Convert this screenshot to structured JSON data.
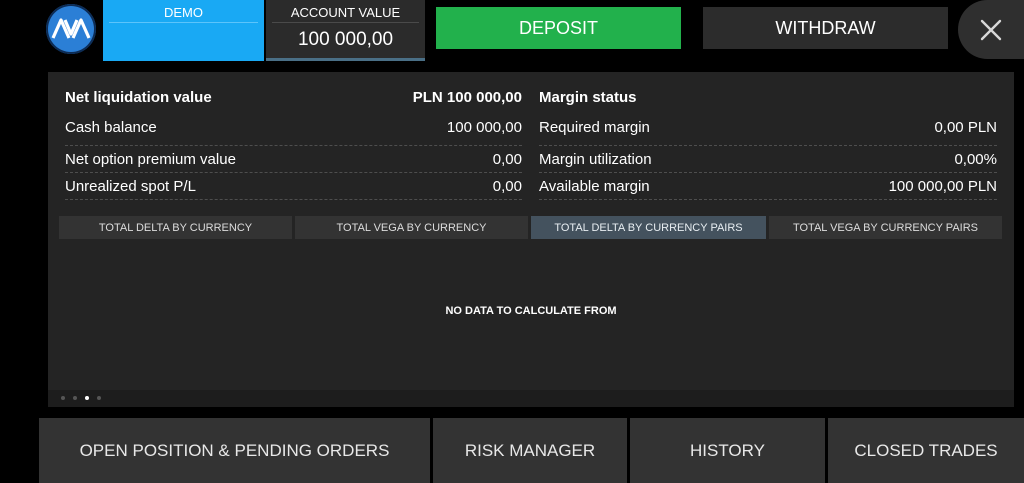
{
  "header": {
    "demo_label": "DEMO",
    "account_value_label": "ACCOUNT VALUE",
    "account_value": "100 000,00",
    "deposit_label": "DEPOSIT",
    "withdraw_label": "WITHDRAW",
    "logo_icon": "ava-logo-icon",
    "close_icon": "close-icon"
  },
  "summary": {
    "left": [
      {
        "label": "Net liquidation value",
        "value": "PLN 100 000,00"
      },
      {
        "label": "Cash balance",
        "value": "100 000,00"
      },
      {
        "label": "Net option premium value",
        "value": "0,00"
      },
      {
        "label": "Unrealized spot P/L",
        "value": "0,00"
      }
    ],
    "right": [
      {
        "label": "Margin status",
        "value": ""
      },
      {
        "label": "Required margin",
        "value": "0,00 PLN"
      },
      {
        "label": "Margin utilization",
        "value": "0,00%"
      },
      {
        "label": "Available margin",
        "value": "100 000,00 PLN"
      }
    ]
  },
  "tabs": [
    {
      "label": "TOTAL DELTA BY CURRENCY"
    },
    {
      "label": "TOTAL VEGA BY CURRENCY"
    },
    {
      "label": "TOTAL DELTA BY CURRENCY PAIRS",
      "active": true
    },
    {
      "label": "TOTAL VEGA BY CURRENCY PAIRS"
    }
  ],
  "empty_message": "NO DATA TO CALCULATE FROM",
  "pager": {
    "pages": 4,
    "current": 3
  },
  "bottom_nav": [
    {
      "label": "OPEN POSITION & PENDING ORDERS"
    },
    {
      "label": "RISK MANAGER"
    },
    {
      "label": "HISTORY"
    },
    {
      "label": "CLOSED TRADES"
    }
  ],
  "colors": {
    "demo": "#19a9f4",
    "deposit": "#22b14c",
    "active_tab": "#44525e"
  }
}
